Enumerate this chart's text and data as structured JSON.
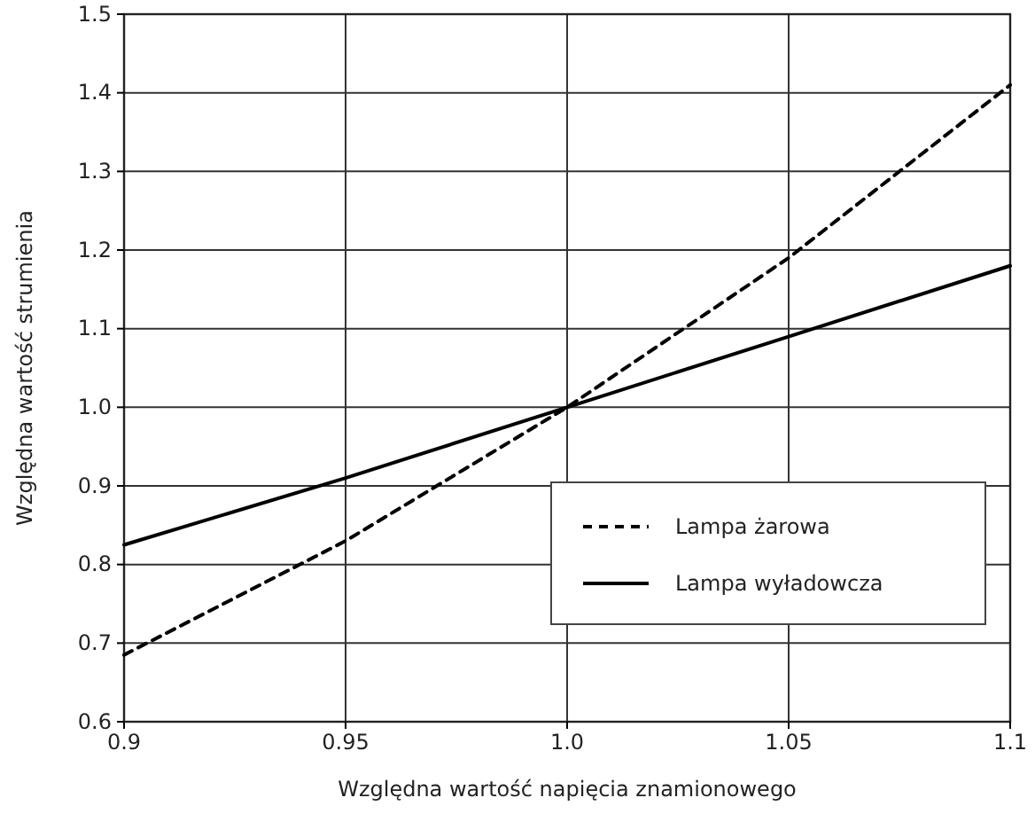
{
  "chart_data": {
    "type": "line",
    "xlabel": "Względna wartość napięcia znamionowego",
    "ylabel": "Względna wartość strumienia",
    "x": [
      0.9,
      0.95,
      1.0,
      1.05,
      1.1
    ],
    "series": [
      {
        "name": "Lampa żarowa",
        "color": "#000000",
        "line_style": "dashed",
        "values": [
          0.685,
          0.83,
          1.0,
          1.19,
          1.41
        ]
      },
      {
        "name": "Lampa wyładowcza",
        "color": "#000000",
        "line_style": "solid",
        "values": [
          0.825,
          0.91,
          1.0,
          1.09,
          1.18
        ]
      }
    ],
    "xlim": [
      0.9,
      1.1
    ],
    "xticks": [
      0.9,
      0.95,
      {
        "value": 1,
        "label": "1.0"
      },
      1.05,
      1.1
    ],
    "ylim": [
      0.6,
      1.5
    ],
    "yticks": [
      0.6,
      0.7,
      0.8,
      0.9,
      {
        "value": 1,
        "label": "1.0"
      },
      1.1,
      1.2,
      1.3,
      1.4,
      1.5
    ],
    "grid": true,
    "legend": "bottom right",
    "marker": "none"
  }
}
